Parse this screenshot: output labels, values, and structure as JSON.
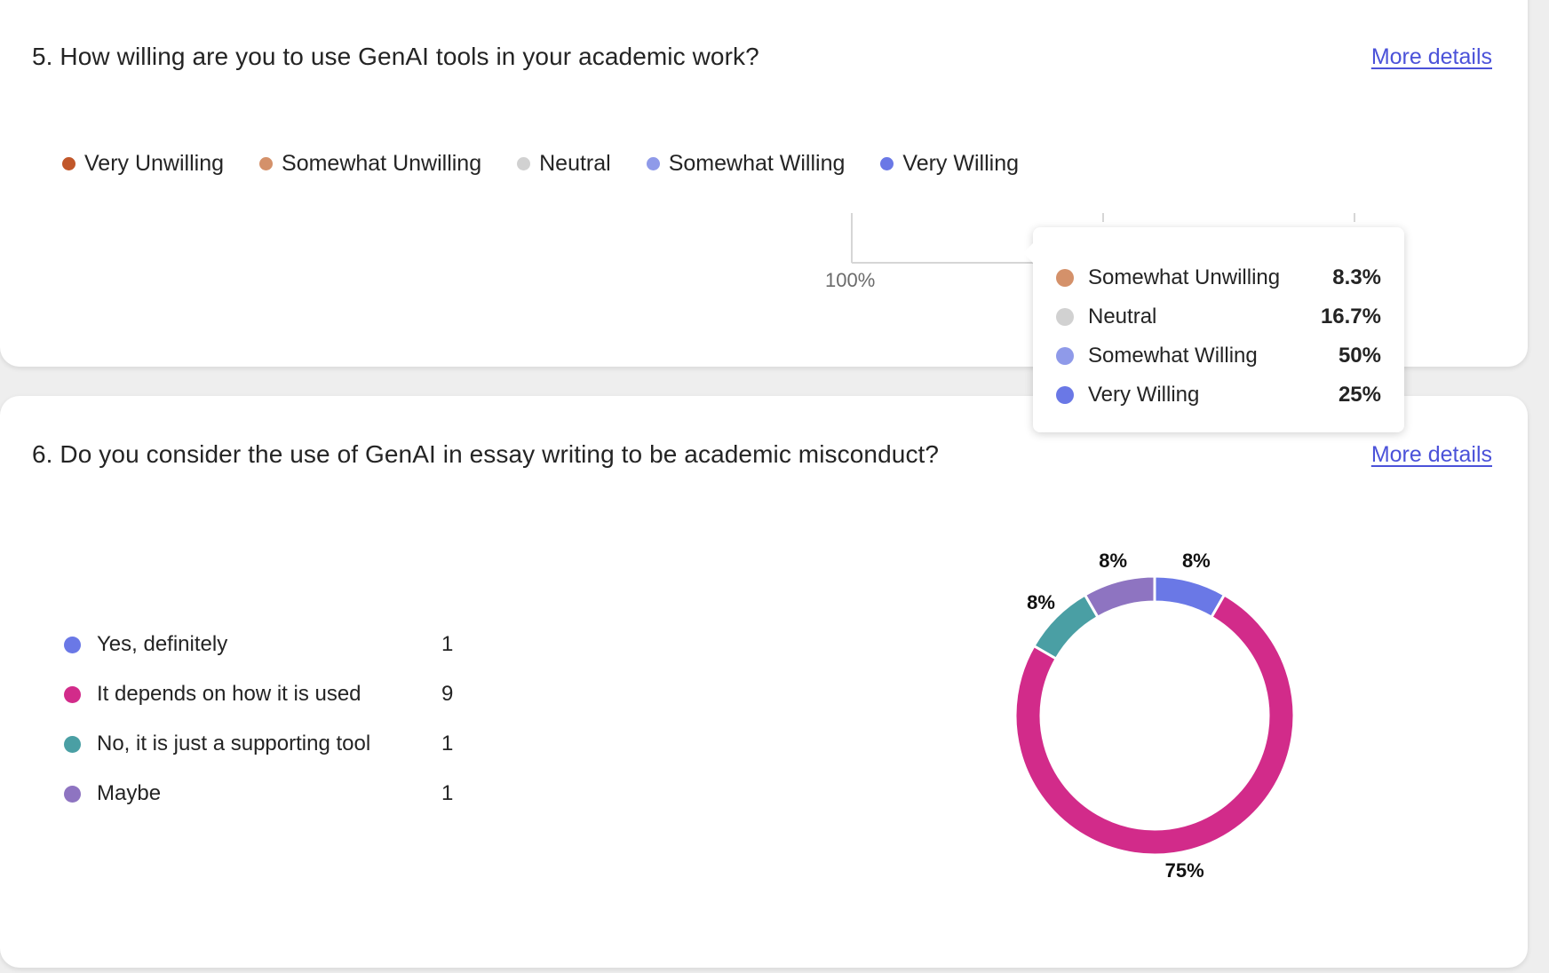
{
  "colors": {
    "very_unwilling": "#c1572a",
    "somewhat_unwilling": "#d4916a",
    "neutral": "#d1d1d1",
    "somewhat_willing": "#8f9ae9",
    "very_willing": "#6a78e6",
    "yes_definitely": "#6a78e6",
    "it_depends": "#d22b8a",
    "no_supporting": "#4a9fa4",
    "maybe": "#8e74c1",
    "link": "#4b52d9"
  },
  "q5": {
    "title": "5. How willing are you to use GenAI tools in your academic work?",
    "more_details": "More details",
    "legend": [
      {
        "label": "Very Unwilling",
        "color": "#c1572a"
      },
      {
        "label": "Somewhat Unwilling",
        "color": "#d4916a"
      },
      {
        "label": "Neutral",
        "color": "#d1d1d1"
      },
      {
        "label": "Somewhat Willing",
        "color": "#8f9ae9"
      },
      {
        "label": "Very Willing",
        "color": "#6a78e6"
      }
    ],
    "axis_label": "100%",
    "tooltip": [
      {
        "label": "Somewhat Unwilling",
        "value": "8.3%",
        "color": "#d4916a"
      },
      {
        "label": "Neutral",
        "value": "16.7%",
        "color": "#d1d1d1"
      },
      {
        "label": "Somewhat Willing",
        "value": "50%",
        "color": "#8f9ae9"
      },
      {
        "label": "Very Willing",
        "value": "25%",
        "color": "#6a78e6"
      }
    ]
  },
  "q6": {
    "title": "6. Do you consider the use of GenAI in essay writing to be academic misconduct?",
    "more_details": "More details",
    "options": [
      {
        "label": "Yes, definitely",
        "count": "1",
        "color": "#6a78e6"
      },
      {
        "label": "It depends on how it is used",
        "count": "9",
        "color": "#d22b8a"
      },
      {
        "label": "No, it is just a supporting tool",
        "count": "1",
        "color": "#4a9fa4"
      },
      {
        "label": "Maybe",
        "count": "1",
        "color": "#8e74c1"
      }
    ]
  },
  "chart_data": {
    "type": "pie",
    "categories": [
      "Yes, definitely",
      "It depends on how it is used",
      "No, it is just a supporting tool",
      "Maybe"
    ],
    "values": [
      1,
      9,
      1,
      1
    ],
    "data_labels": [
      "8%",
      "75%",
      "8%",
      "8%"
    ],
    "colors": [
      "#6a78e6",
      "#d22b8a",
      "#4a9fa4",
      "#8e74c1"
    ]
  }
}
